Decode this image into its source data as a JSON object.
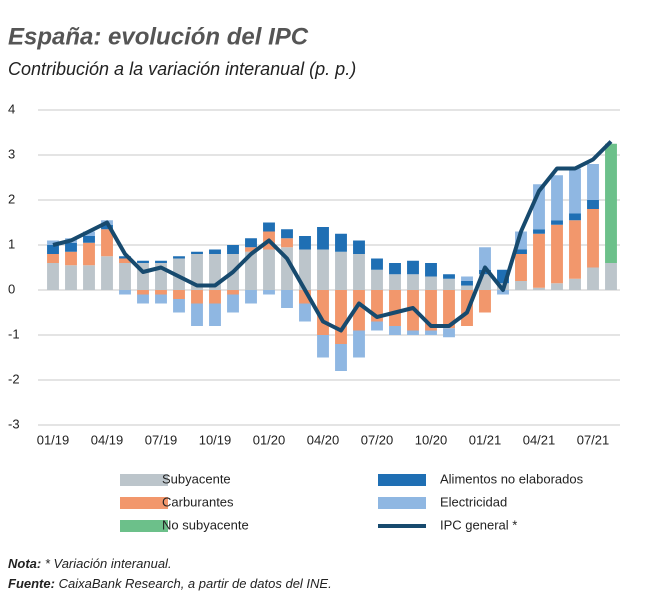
{
  "chart_data": {
    "type": "bar",
    "title": "España: evolución del IPC",
    "subtitle": "Contribución a la variación interanual (p. p.)",
    "categories": [
      "01/19",
      null,
      null,
      "04/19",
      null,
      null,
      "07/19",
      null,
      null,
      "10/19",
      null,
      null,
      "01/20",
      null,
      null,
      "04/20",
      null,
      null,
      "07/20",
      null,
      null,
      "10/20",
      null,
      null,
      "01/21",
      null,
      null,
      "04/21",
      null,
      null,
      "07/21",
      null
    ],
    "ylim": [
      -3,
      4
    ],
    "yticks": [
      -3,
      -2,
      -1,
      0,
      1,
      2,
      3,
      4
    ],
    "grid": true,
    "series": [
      {
        "name": "Subyacente",
        "color": "#bcc5cb",
        "values": [
          0.6,
          0.55,
          0.55,
          0.75,
          0.6,
          0.6,
          0.6,
          0.7,
          0.8,
          0.8,
          0.8,
          0.85,
          0.9,
          0.95,
          0.9,
          0.9,
          0.85,
          0.8,
          0.45,
          0.35,
          0.35,
          0.3,
          0.25,
          0.1,
          0.35,
          0.15,
          0.2,
          0.05,
          0.15,
          0.25,
          0.5,
          0.6
        ]
      },
      {
        "name": "Carburantes",
        "color": "#f2976c",
        "values": [
          0.2,
          0.3,
          0.5,
          0.6,
          0.1,
          -0.1,
          -0.1,
          -0.2,
          -0.3,
          -0.3,
          -0.1,
          0.1,
          0.4,
          0.2,
          -0.3,
          -1.0,
          -1.2,
          -0.9,
          -0.7,
          -0.8,
          -0.9,
          -0.9,
          -0.85,
          -0.8,
          -0.5,
          0.0,
          0.6,
          1.2,
          1.3,
          1.3,
          1.3,
          null
        ]
      },
      {
        "name": "No subyacente",
        "color": "#6cc08a",
        "values": [
          null,
          null,
          null,
          null,
          null,
          null,
          null,
          null,
          null,
          null,
          null,
          null,
          null,
          null,
          null,
          null,
          null,
          null,
          null,
          null,
          null,
          null,
          null,
          null,
          null,
          null,
          null,
          null,
          null,
          null,
          null,
          2.65
        ]
      },
      {
        "name": "Alimentos no elaborados",
        "color": "#1f6fb4",
        "values": [
          0.2,
          0.2,
          0.15,
          0.1,
          0.05,
          0.05,
          0.05,
          0.05,
          0.05,
          0.1,
          0.2,
          0.2,
          0.2,
          0.2,
          0.3,
          0.5,
          0.4,
          0.3,
          0.25,
          0.25,
          0.3,
          0.3,
          0.1,
          0.1,
          0.1,
          0.3,
          0.1,
          0.1,
          0.1,
          0.15,
          0.2,
          null
        ]
      },
      {
        "name": "Electricidad",
        "color": "#8fb7e2",
        "values": [
          0.1,
          0.1,
          0.1,
          0.1,
          -0.1,
          -0.2,
          -0.2,
          -0.3,
          -0.5,
          -0.5,
          -0.4,
          -0.3,
          -0.1,
          -0.4,
          -0.4,
          -0.5,
          -0.6,
          -0.6,
          -0.2,
          -0.2,
          -0.1,
          -0.1,
          -0.2,
          0.1,
          0.5,
          -0.1,
          0.4,
          1.0,
          1.0,
          1.0,
          0.8,
          null
        ]
      },
      {
        "name": "IPC general *",
        "color": "#174a6e",
        "type": "line",
        "values": [
          1.0,
          1.1,
          1.3,
          1.5,
          0.8,
          0.4,
          0.5,
          0.3,
          0.1,
          0.1,
          0.4,
          0.8,
          1.1,
          0.7,
          0.0,
          -0.7,
          -0.9,
          -0.3,
          -0.6,
          -0.5,
          -0.4,
          -0.8,
          -0.8,
          -0.5,
          0.5,
          0.0,
          1.3,
          2.2,
          2.7,
          2.7,
          2.9,
          3.3
        ]
      }
    ]
  },
  "note": {
    "label": "Nota:",
    "text": "* Variación interanual."
  },
  "source": {
    "label": "Fuente:",
    "text": "CaixaBank Research, a partir de datos del INE."
  }
}
